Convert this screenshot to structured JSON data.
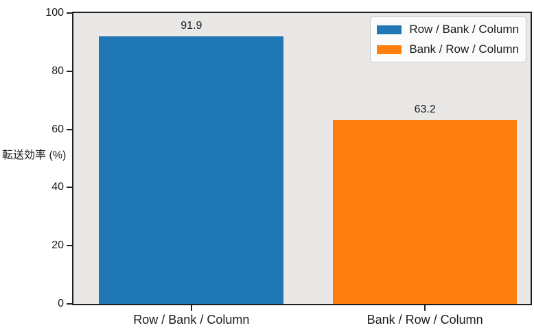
{
  "chart_data": {
    "type": "bar",
    "categories": [
      "Row / Bank / Column",
      "Bank / Row / Column"
    ],
    "series": [
      {
        "name": "Row / Bank / Column",
        "value": 91.9,
        "value_label": "91.9",
        "color": "#1f77b4"
      },
      {
        "name": "Bank / Row / Column",
        "value": 63.2,
        "value_label": "63.2",
        "color": "#ff7f0e"
      }
    ],
    "title": "",
    "xlabel": "",
    "ylabel": "転送効率 (%)",
    "ylim": [
      0,
      100
    ],
    "yticks": [
      "0",
      "20",
      "40",
      "60",
      "80",
      "100"
    ],
    "grid": "off",
    "legend_position": "upper right",
    "colors": {
      "plot_background": "#e9e8e6",
      "figure_background": "#ffffff",
      "spine": "#1f1f1f",
      "text": "#1a1a1a",
      "legend_background": "#fbfbfb",
      "legend_border": "#cbcbcb"
    }
  }
}
